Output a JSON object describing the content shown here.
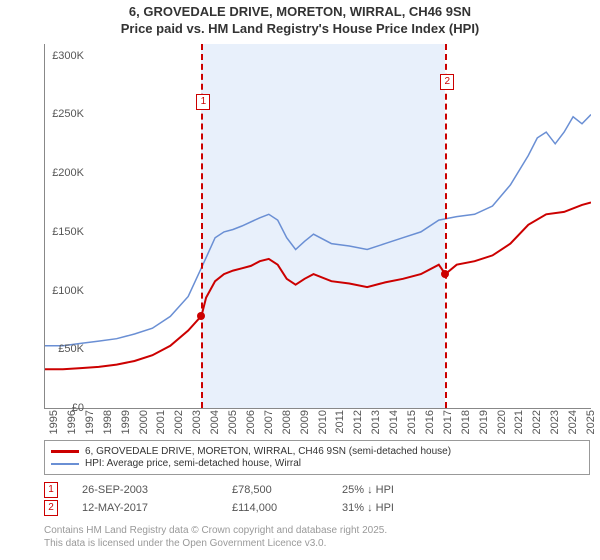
{
  "title": {
    "line1": "6, GROVEDALE DRIVE, MORETON, WIRRAL, CH46 9SN",
    "line2": "Price paid vs. HM Land Registry's House Price Index (HPI)"
  },
  "chart": {
    "type": "line",
    "background_color": "#ffffff",
    "shaded_band": {
      "start_year": 2003.74,
      "end_year": 2017.36,
      "fill": "#e8f0fb"
    },
    "x": {
      "min": 1995,
      "max": 2025.5,
      "ticks": [
        1995,
        1996,
        1997,
        1998,
        1999,
        2000,
        2001,
        2002,
        2003,
        2004,
        2005,
        2006,
        2007,
        2008,
        2009,
        2010,
        2011,
        2012,
        2013,
        2014,
        2015,
        2016,
        2017,
        2018,
        2019,
        2020,
        2021,
        2022,
        2023,
        2024,
        2025
      ],
      "label_fontsize": 11
    },
    "y": {
      "min": 0,
      "max": 310000,
      "ticks": [
        0,
        50000,
        100000,
        150000,
        200000,
        250000,
        300000
      ],
      "tick_labels": [
        "£0",
        "£50K",
        "£100K",
        "£150K",
        "£200K",
        "£250K",
        "£300K"
      ],
      "label_fontsize": 11
    },
    "series": [
      {
        "name": "price_paid",
        "label": "6, GROVEDALE DRIVE, MORETON, WIRRAL, CH46 9SN (semi-detached house)",
        "color": "#cc0000",
        "line_width": 2,
        "data": [
          [
            1995,
            33000
          ],
          [
            1996,
            33000
          ],
          [
            1997,
            34000
          ],
          [
            1998,
            35000
          ],
          [
            1999,
            37000
          ],
          [
            2000,
            40000
          ],
          [
            2001,
            45000
          ],
          [
            2002,
            53000
          ],
          [
            2003,
            66000
          ],
          [
            2003.74,
            78500
          ],
          [
            2004,
            94000
          ],
          [
            2004.5,
            108000
          ],
          [
            2005,
            114000
          ],
          [
            2005.5,
            117000
          ],
          [
            2006,
            119000
          ],
          [
            2006.5,
            121000
          ],
          [
            2007,
            125000
          ],
          [
            2007.5,
            127000
          ],
          [
            2008,
            122000
          ],
          [
            2008.5,
            110000
          ],
          [
            2009,
            105000
          ],
          [
            2009.5,
            110000
          ],
          [
            2010,
            114000
          ],
          [
            2011,
            108000
          ],
          [
            2012,
            106000
          ],
          [
            2013,
            103000
          ],
          [
            2014,
            107000
          ],
          [
            2015,
            110000
          ],
          [
            2016,
            114000
          ],
          [
            2017,
            122000
          ],
          [
            2017.36,
            114000
          ],
          [
            2018,
            122000
          ],
          [
            2019,
            125000
          ],
          [
            2020,
            130000
          ],
          [
            2021,
            140000
          ],
          [
            2022,
            156000
          ],
          [
            2023,
            165000
          ],
          [
            2024,
            167000
          ],
          [
            2025,
            173000
          ],
          [
            2025.5,
            175000
          ]
        ]
      },
      {
        "name": "hpi",
        "label": "HPI: Average price, semi-detached house, Wirral",
        "color": "#6a8fd4",
        "line_width": 1.5,
        "data": [
          [
            1995,
            53000
          ],
          [
            1996,
            53000
          ],
          [
            1997,
            55000
          ],
          [
            1998,
            57000
          ],
          [
            1999,
            59000
          ],
          [
            2000,
            63000
          ],
          [
            2001,
            68000
          ],
          [
            2002,
            78000
          ],
          [
            2003,
            95000
          ],
          [
            2004,
            128000
          ],
          [
            2004.5,
            145000
          ],
          [
            2005,
            150000
          ],
          [
            2005.5,
            152000
          ],
          [
            2006,
            155000
          ],
          [
            2007,
            162000
          ],
          [
            2007.5,
            165000
          ],
          [
            2008,
            160000
          ],
          [
            2008.5,
            145000
          ],
          [
            2009,
            135000
          ],
          [
            2009.5,
            142000
          ],
          [
            2010,
            148000
          ],
          [
            2011,
            140000
          ],
          [
            2012,
            138000
          ],
          [
            2013,
            135000
          ],
          [
            2014,
            140000
          ],
          [
            2015,
            145000
          ],
          [
            2016,
            150000
          ],
          [
            2017,
            160000
          ],
          [
            2018,
            163000
          ],
          [
            2019,
            165000
          ],
          [
            2020,
            172000
          ],
          [
            2021,
            190000
          ],
          [
            2022,
            215000
          ],
          [
            2022.5,
            230000
          ],
          [
            2023,
            235000
          ],
          [
            2023.5,
            225000
          ],
          [
            2024,
            235000
          ],
          [
            2024.5,
            248000
          ],
          [
            2025,
            242000
          ],
          [
            2025.5,
            250000
          ]
        ]
      }
    ],
    "sale_markers": [
      {
        "n": "1",
        "year": 2003.74,
        "price": 78500,
        "box_top": 50
      },
      {
        "n": "2",
        "year": 2017.36,
        "price": 114000,
        "box_top": 30
      }
    ]
  },
  "legend": {
    "border_color": "#999999"
  },
  "sales": [
    {
      "n": "1",
      "date": "26-SEP-2003",
      "price": "£78,500",
      "diff": "25% ↓ HPI"
    },
    {
      "n": "2",
      "date": "12-MAY-2017",
      "price": "£114,000",
      "diff": "31% ↓ HPI"
    }
  ],
  "attribution": {
    "line1": "Contains HM Land Registry data © Crown copyright and database right 2025.",
    "line2": "This data is licensed under the Open Government Licence v3.0."
  }
}
